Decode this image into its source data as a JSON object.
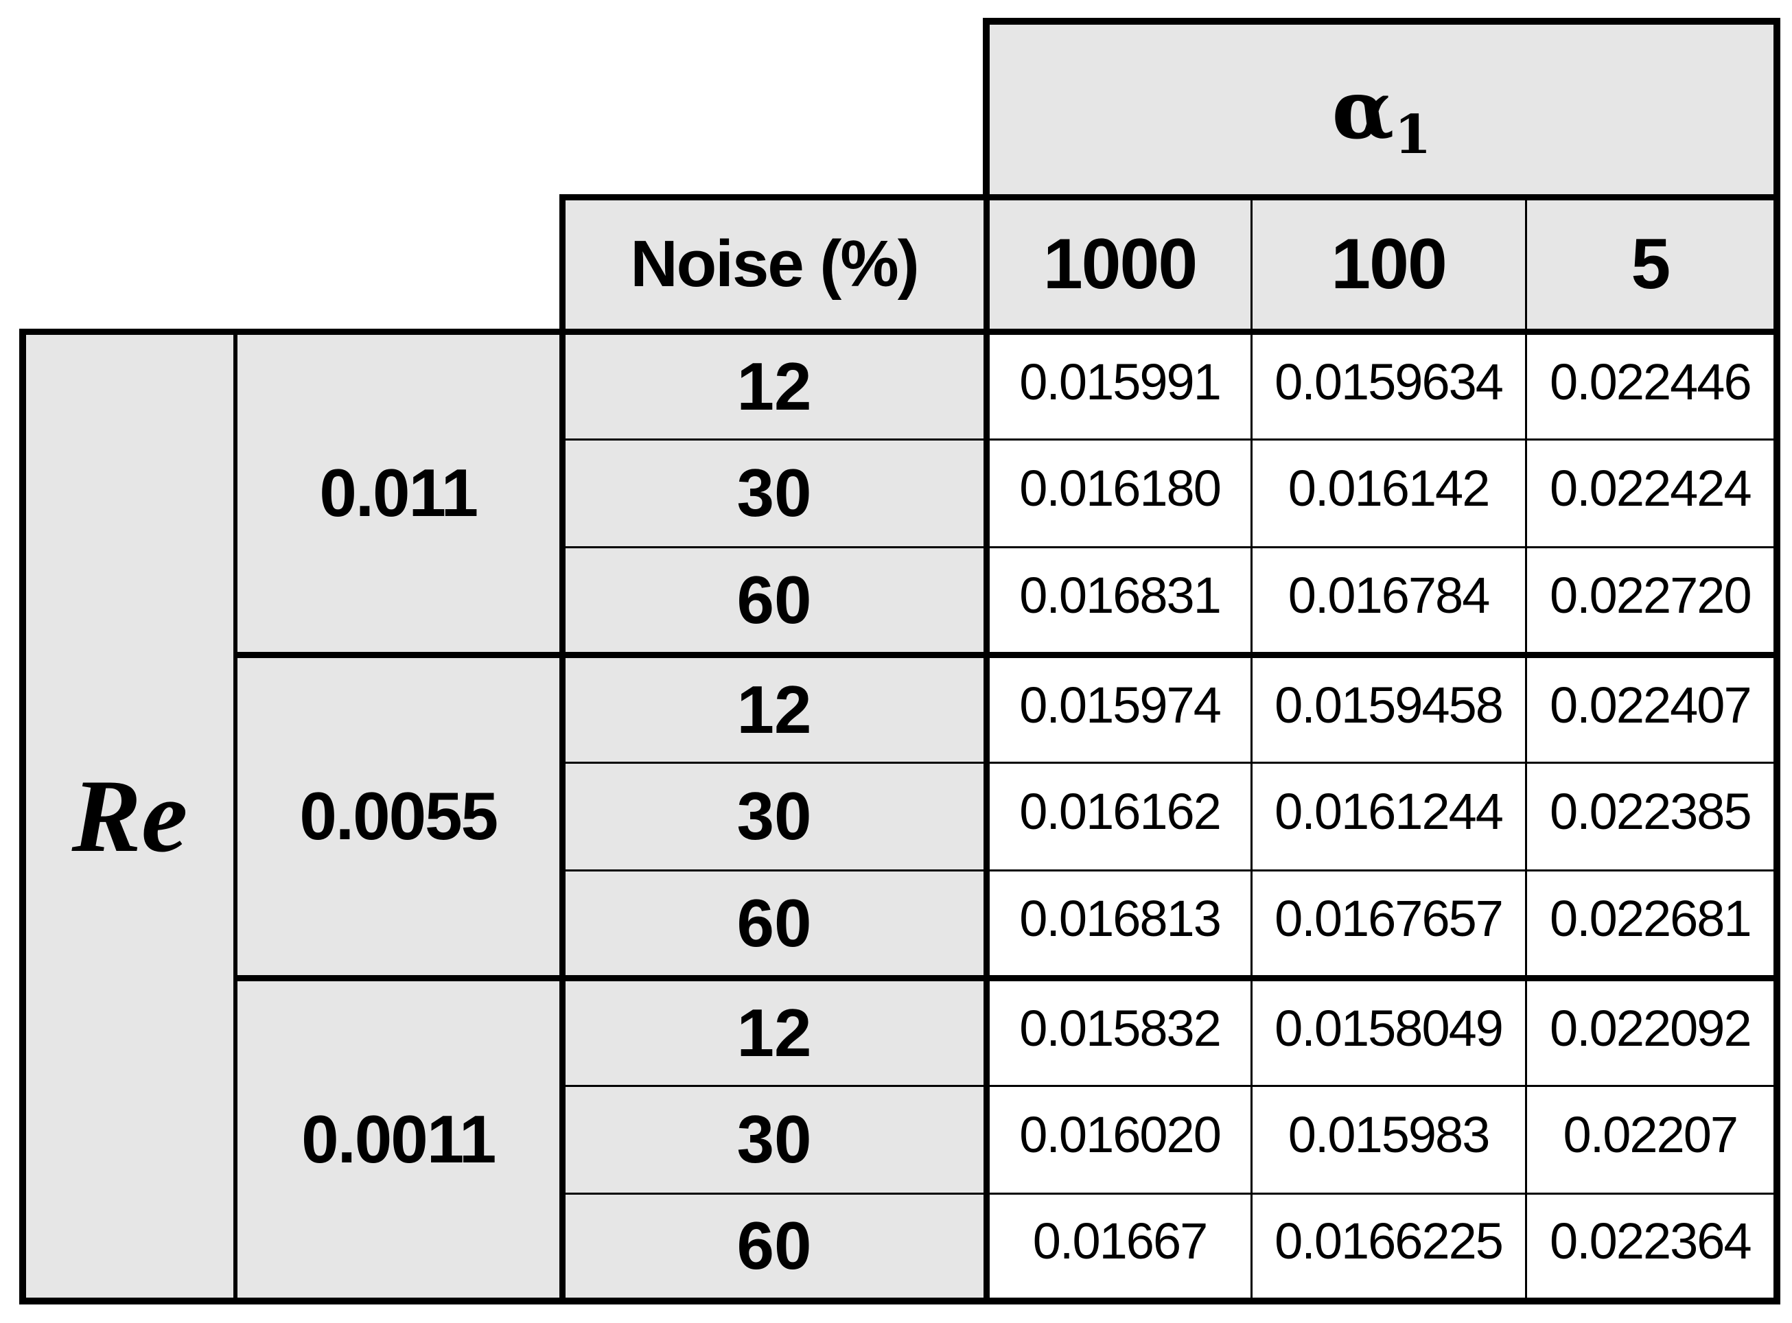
{
  "table": {
    "alpha_label": "α",
    "alpha_sub": "1",
    "noise_header": "Noise (%)",
    "alpha_columns": [
      "1000",
      "100",
      "5"
    ],
    "re_label": "Re",
    "groups": [
      {
        "re": "0.011",
        "rows": [
          {
            "noise": "12",
            "values": [
              "0.015991",
              "0.0159634",
              "0.022446"
            ]
          },
          {
            "noise": "30",
            "values": [
              "0.016180",
              "0.016142",
              "0.022424"
            ]
          },
          {
            "noise": "60",
            "values": [
              "0.016831",
              "0.016784",
              "0.022720"
            ]
          }
        ]
      },
      {
        "re": "0.0055",
        "rows": [
          {
            "noise": "12",
            "values": [
              "0.015974",
              "0.0159458",
              "0.022407"
            ]
          },
          {
            "noise": "30",
            "values": [
              "0.016162",
              "0.0161244",
              "0.022385"
            ]
          },
          {
            "noise": "60",
            "values": [
              "0.016813",
              "0.0167657",
              "0.022681"
            ]
          }
        ]
      },
      {
        "re": "0.0011",
        "rows": [
          {
            "noise": "12",
            "values": [
              "0.015832",
              "0.0158049",
              "0.022092"
            ]
          },
          {
            "noise": "30",
            "values": [
              "0.016020",
              "0.015983",
              "0.02207"
            ]
          },
          {
            "noise": "60",
            "values": [
              "0.01667",
              "0.0166225",
              "0.022364"
            ]
          }
        ]
      }
    ],
    "colors": {
      "header_bg": "#e6e6e6",
      "cell_bg": "#ffffff",
      "border": "#000000"
    }
  }
}
